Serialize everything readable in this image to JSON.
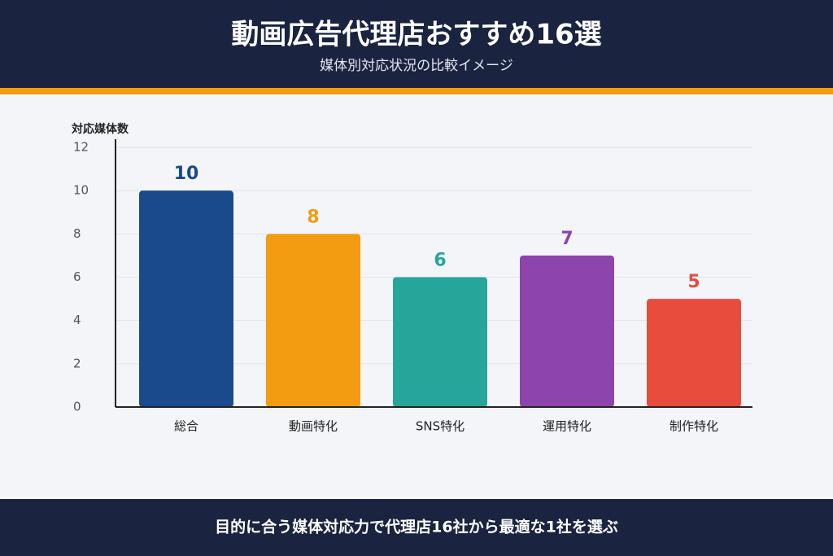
{
  "chart_data": {
    "type": "bar",
    "title": "動画広告代理店おすすめ16選",
    "subtitle": "媒体別対応状況の比較イメージ",
    "y_label": "対応媒体数",
    "categories": [
      "総合",
      "動画特化",
      "SNS特化",
      "運用特化",
      "制作特化"
    ],
    "values": [
      10,
      8,
      6,
      7,
      5
    ],
    "colors": [
      "#1b4a8c",
      "#f39c12",
      "#26a69a",
      "#8e44ad",
      "#e74c3c"
    ],
    "ylim": [
      0,
      12
    ],
    "yticks": [
      0,
      2,
      4,
      6,
      8,
      10,
      12
    ],
    "grid": true
  },
  "footer": {
    "text": "目的に合う媒体対応力で代理店16社から最適な1社を選ぶ"
  }
}
